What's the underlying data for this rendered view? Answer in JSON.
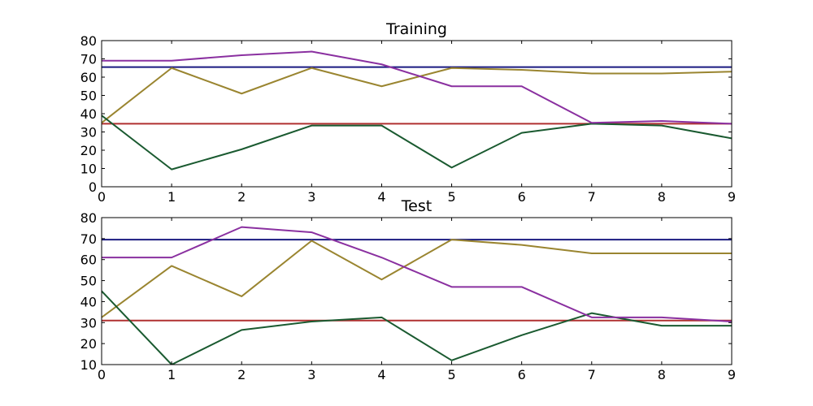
{
  "chart_data": [
    {
      "type": "line",
      "title": "Training",
      "xlabel": "",
      "ylabel": "",
      "xlim": [
        0,
        9
      ],
      "ylim": [
        0,
        80
      ],
      "x_ticks": [
        0,
        1,
        2,
        3,
        4,
        5,
        6,
        7,
        8,
        9
      ],
      "y_ticks": [
        0,
        10,
        20,
        30,
        40,
        50,
        60,
        70,
        80
      ],
      "grid": false,
      "x": [
        0,
        1,
        2,
        3,
        4,
        5,
        6,
        7,
        8,
        9
      ],
      "series": [
        {
          "color": "#1a1a80",
          "values": [
            65.5,
            65.5,
            65.5,
            65.5,
            65.5,
            65.5,
            65.5,
            65.5,
            65.5,
            65.5
          ]
        },
        {
          "color": "#b03030",
          "values": [
            34.5,
            34.5,
            34.5,
            34.5,
            34.5,
            34.5,
            34.5,
            34.5,
            34.5,
            34.5
          ]
        },
        {
          "color": "#9a8530",
          "values": [
            35,
            65,
            51,
            65,
            55,
            65,
            64,
            62,
            62,
            63
          ]
        },
        {
          "color": "#1a5a30",
          "values": [
            39,
            9.5,
            20.5,
            33.5,
            33.5,
            10.5,
            29.5,
            34.5,
            33.5,
            26.5
          ]
        },
        {
          "color": "#8a30a0",
          "values": [
            69,
            69,
            72,
            74,
            67,
            55,
            55,
            35,
            36,
            34.5
          ]
        }
      ]
    },
    {
      "type": "line",
      "title": "Test",
      "xlabel": "",
      "ylabel": "",
      "xlim": [
        0,
        9
      ],
      "ylim": [
        10,
        80
      ],
      "x_ticks": [
        0,
        1,
        2,
        3,
        4,
        5,
        6,
        7,
        8,
        9
      ],
      "y_ticks": [
        10,
        20,
        30,
        40,
        50,
        60,
        70,
        80
      ],
      "grid": false,
      "x": [
        0,
        1,
        2,
        3,
        4,
        5,
        6,
        7,
        8,
        9
      ],
      "series": [
        {
          "color": "#1a1a80",
          "values": [
            69.5,
            69.5,
            69.5,
            69.5,
            69.5,
            69.5,
            69.5,
            69.5,
            69.5,
            69.5
          ]
        },
        {
          "color": "#b03030",
          "values": [
            31,
            31,
            31,
            31,
            31,
            31,
            31,
            31,
            31,
            31
          ]
        },
        {
          "color": "#9a8530",
          "values": [
            32.5,
            57,
            42.5,
            69,
            50.5,
            69.5,
            67,
            63,
            63,
            63
          ]
        },
        {
          "color": "#1a5a30",
          "values": [
            45,
            10,
            26.5,
            30.5,
            32.5,
            12,
            24,
            34.5,
            28.5,
            28.5
          ]
        },
        {
          "color": "#8a30a0",
          "values": [
            61,
            61,
            75.5,
            73,
            61,
            47,
            47,
            32.5,
            32.5,
            30.5
          ]
        }
      ]
    }
  ]
}
